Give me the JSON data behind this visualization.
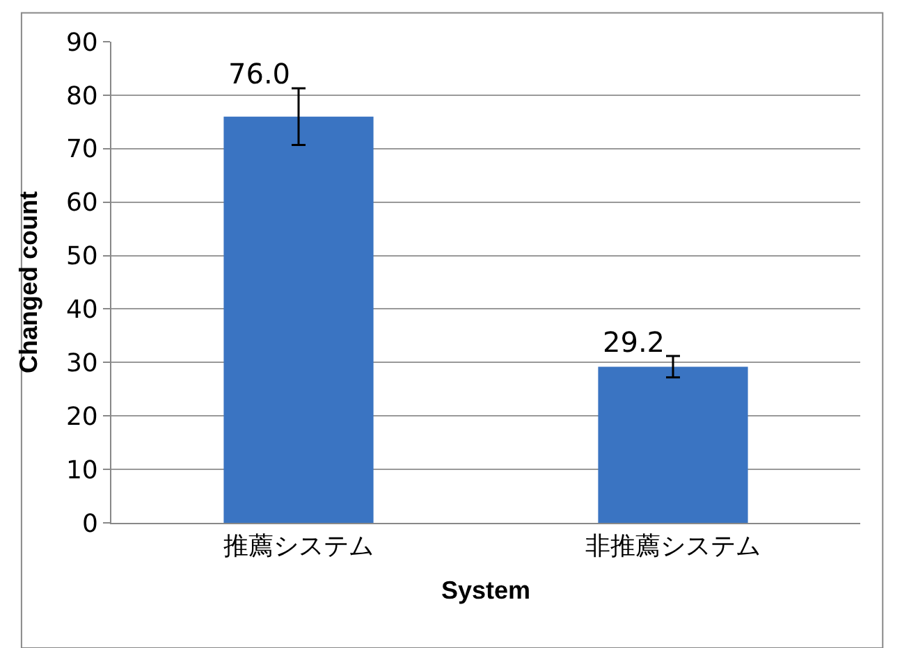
{
  "chart_data": {
    "type": "bar",
    "xlabel": "System",
    "ylabel": "Changed count",
    "categories": [
      "推薦システム",
      "非推薦システム"
    ],
    "series": [
      {
        "color": "#3a74c2",
        "values": [
          76.0,
          29.2
        ],
        "errors": [
          5.3,
          2.0
        ]
      }
    ],
    "value_labels": [
      "76.0",
      "29.2"
    ],
    "ylim": [
      0,
      90
    ],
    "yticks": [
      0,
      10,
      20,
      30,
      40,
      50,
      60,
      70,
      80,
      90
    ],
    "grid": "y",
    "legend": false
  }
}
